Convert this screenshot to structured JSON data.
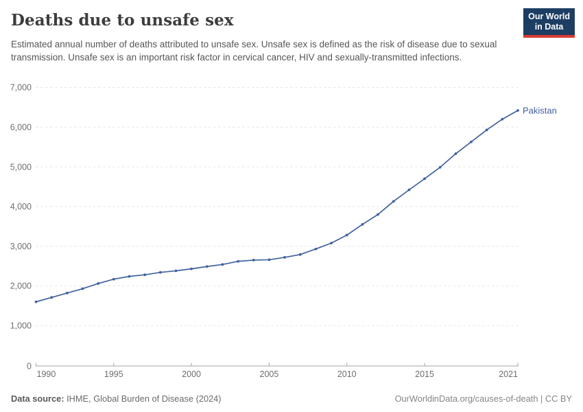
{
  "header": {
    "title": "Deaths due to unsafe sex",
    "subtitle": "Estimated annual number of deaths attributed to unsafe sex. Unsafe sex is defined as the risk of disease due to sexual transmission. Unsafe sex is an important risk factor in cervical cancer, HIV and sexually-transmitted infections.",
    "logo": {
      "line1": "Our World",
      "line2": "in Data",
      "bg_color": "#1d3d63",
      "bar_color": "#dc3b32"
    }
  },
  "chart_data": {
    "type": "line",
    "title": "Deaths due to unsafe sex",
    "x": [
      1990,
      1991,
      1992,
      1993,
      1994,
      1995,
      1996,
      1997,
      1998,
      1999,
      2000,
      2001,
      2002,
      2003,
      2004,
      2005,
      2006,
      2007,
      2008,
      2009,
      2010,
      2011,
      2012,
      2013,
      2014,
      2015,
      2016,
      2017,
      2018,
      2019,
      2020,
      2021
    ],
    "series": [
      {
        "name": "Pakistan",
        "values": [
          1600,
          1710,
          1820,
          1930,
          2060,
          2170,
          2240,
          2280,
          2340,
          2380,
          2430,
          2490,
          2540,
          2620,
          2650,
          2660,
          2720,
          2790,
          2930,
          3080,
          3280,
          3550,
          3800,
          4130,
          4420,
          4700,
          4990,
          5330,
          5630,
          5930,
          6200,
          6420
        ]
      }
    ],
    "xlim": [
      1990,
      2021
    ],
    "ylim": [
      0,
      7000
    ],
    "xticks": [
      1990,
      1995,
      2000,
      2005,
      2010,
      2015,
      2021
    ],
    "yticks": [
      0,
      1000,
      2000,
      3000,
      4000,
      5000,
      6000,
      7000
    ],
    "grid": "horizontal-dashed",
    "legend": "end-of-line-label",
    "entity_label": "Pakistan",
    "colors": {
      "line": "#40619e",
      "grid": "#e2e2e2",
      "axis": "#a3a3a3",
      "tick_label": "#6e6e6e"
    }
  },
  "footer": {
    "source_label": "Data source:",
    "source_text": " IHME, Global Burden of Disease (2024)",
    "link_text": "OurWorldinData.org/causes-of-death | CC BY"
  }
}
